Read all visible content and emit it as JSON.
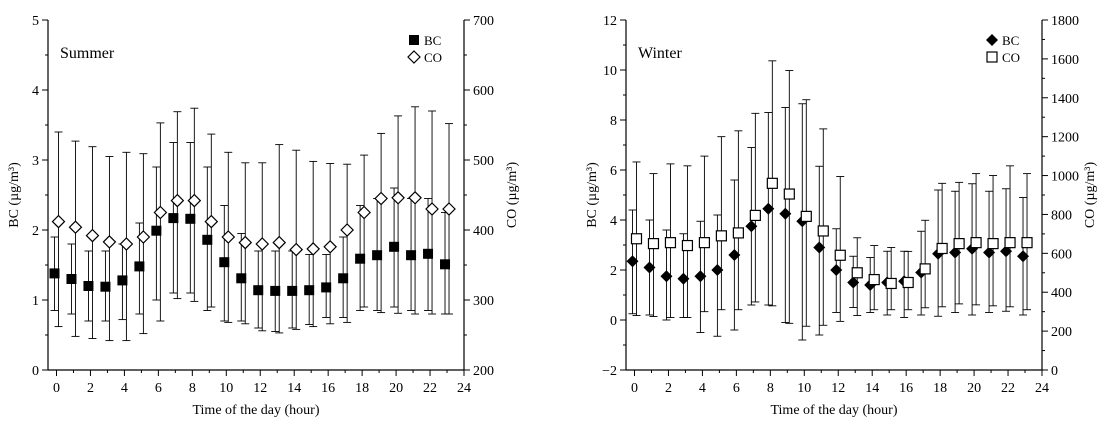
{
  "chart_data": [
    {
      "type": "scatter",
      "panel_label": "Summer",
      "xlabel": "Time of the day (hour)",
      "ylabel_left": "BC (µg/m³)",
      "ylabel_right": "CO (µg/m³)",
      "xlim": [
        -0.5,
        24
      ],
      "xticks": [
        0,
        2,
        4,
        6,
        8,
        10,
        12,
        14,
        16,
        18,
        20,
        22,
        24
      ],
      "ylim_left": [
        0,
        5
      ],
      "yticks_left": [
        0,
        1,
        2,
        3,
        4,
        5
      ],
      "ylim_right": [
        200,
        700
      ],
      "yticks_right": [
        200,
        300,
        400,
        500,
        600,
        700
      ],
      "legend_position": "top-right",
      "grid": false,
      "x": [
        0,
        1,
        2,
        3,
        4,
        5,
        6,
        7,
        8,
        9,
        10,
        11,
        12,
        13,
        14,
        15,
        16,
        17,
        18,
        19,
        20,
        21,
        22,
        23
      ],
      "series": [
        {
          "name": "BC",
          "axis": "left",
          "marker": "filled-square",
          "values": [
            1.38,
            1.3,
            1.2,
            1.19,
            1.28,
            1.48,
            1.99,
            2.17,
            2.16,
            1.86,
            1.54,
            1.31,
            1.14,
            1.13,
            1.13,
            1.14,
            1.18,
            1.31,
            1.59,
            1.64,
            1.76,
            1.64,
            1.66,
            1.51
          ],
          "err_low": [
            0.85,
            0.8,
            0.7,
            0.7,
            0.72,
            0.8,
            1.0,
            1.1,
            1.1,
            0.85,
            0.7,
            0.7,
            0.6,
            0.55,
            0.6,
            0.65,
            0.75,
            0.75,
            0.85,
            0.85,
            0.9,
            0.85,
            0.85,
            0.8
          ],
          "err_high": [
            1.9,
            1.8,
            1.7,
            1.7,
            1.8,
            2.1,
            2.9,
            3.25,
            3.25,
            2.9,
            2.35,
            1.95,
            1.7,
            1.7,
            1.7,
            1.65,
            1.65,
            1.9,
            2.35,
            2.45,
            2.6,
            2.45,
            2.45,
            2.25
          ]
        },
        {
          "name": "CO",
          "axis": "right",
          "marker": "open-diamond",
          "values": [
            412,
            404,
            392,
            383,
            380,
            390,
            425,
            442,
            442,
            412,
            390,
            382,
            380,
            382,
            372,
            373,
            376,
            400,
            425,
            445,
            446,
            446,
            430,
            430
          ],
          "err_low": [
            262,
            248,
            245,
            242,
            242,
            252,
            270,
            302,
            298,
            290,
            268,
            266,
            256,
            253,
            258,
            262,
            266,
            268,
            290,
            282,
            281,
            280,
            280,
            280
          ],
          "err_high": [
            540,
            527,
            519,
            505,
            511,
            509,
            553,
            569,
            574,
            537,
            511,
            496,
            496,
            522,
            514,
            498,
            495,
            494,
            507,
            538,
            563,
            576,
            570,
            552
          ]
        }
      ]
    },
    {
      "type": "scatter",
      "panel_label": "Winter",
      "xlabel": "Time of the day (hour)",
      "ylabel_left": "BC (µg/m³)",
      "ylabel_right": "CO (µg/m³)",
      "xlim": [
        -0.5,
        24
      ],
      "xticks": [
        0,
        2,
        4,
        6,
        8,
        10,
        12,
        14,
        16,
        18,
        20,
        22,
        24
      ],
      "ylim_left": [
        -2,
        12
      ],
      "yticks_left": [
        -2,
        0,
        2,
        4,
        6,
        8,
        10,
        12
      ],
      "ylim_right": [
        0,
        1800
      ],
      "yticks_right": [
        0,
        200,
        400,
        600,
        800,
        1000,
        1200,
        1400,
        1600,
        1800
      ],
      "legend_position": "top-right",
      "grid": false,
      "x": [
        0,
        1,
        2,
        3,
        4,
        5,
        6,
        7,
        8,
        9,
        10,
        11,
        12,
        13,
        14,
        15,
        16,
        17,
        18,
        19,
        20,
        21,
        22,
        23
      ],
      "series": [
        {
          "name": "BC",
          "axis": "left",
          "marker": "filled-diamond",
          "values": [
            2.35,
            2.1,
            1.75,
            1.65,
            1.75,
            2.0,
            2.6,
            3.75,
            4.45,
            4.25,
            3.95,
            2.9,
            2.0,
            1.5,
            1.4,
            1.5,
            1.55,
            1.9,
            2.65,
            2.7,
            2.85,
            2.7,
            2.75,
            2.55
          ],
          "err_low": [
            0.25,
            0.2,
            0.0,
            0.1,
            -0.5,
            -0.65,
            -0.4,
            0.6,
            0.6,
            -0.1,
            -0.8,
            -0.6,
            0.3,
            0.5,
            0.3,
            0.2,
            0.1,
            0.2,
            0.15,
            0.3,
            0.2,
            0.3,
            0.35,
            0.2
          ],
          "err_high": [
            4.4,
            4.0,
            3.6,
            3.45,
            3.95,
            4.2,
            5.6,
            6.9,
            8.3,
            8.5,
            8.65,
            6.15,
            3.65,
            2.55,
            2.5,
            2.75,
            2.75,
            3.55,
            5.2,
            5.15,
            5.45,
            5.15,
            5.25,
            4.9
          ]
        },
        {
          "name": "CO",
          "axis": "right",
          "marker": "open-square",
          "values": [
            675,
            650,
            655,
            640,
            655,
            690,
            705,
            795,
            960,
            905,
            790,
            715,
            590,
            500,
            465,
            445,
            450,
            520,
            625,
            650,
            655,
            650,
            655,
            655
          ],
          "err_low": [
            280,
            275,
            270,
            270,
            300,
            310,
            310,
            350,
            330,
            240,
            225,
            230,
            250,
            280,
            310,
            310,
            310,
            320,
            325,
            340,
            335,
            330,
            325,
            310
          ],
          "err_high": [
            1070,
            1010,
            1060,
            1050,
            1100,
            1200,
            1230,
            1320,
            1590,
            1540,
            1390,
            1240,
            995,
            680,
            640,
            630,
            610,
            770,
            960,
            965,
            1010,
            1000,
            1050,
            1010
          ]
        }
      ]
    }
  ]
}
